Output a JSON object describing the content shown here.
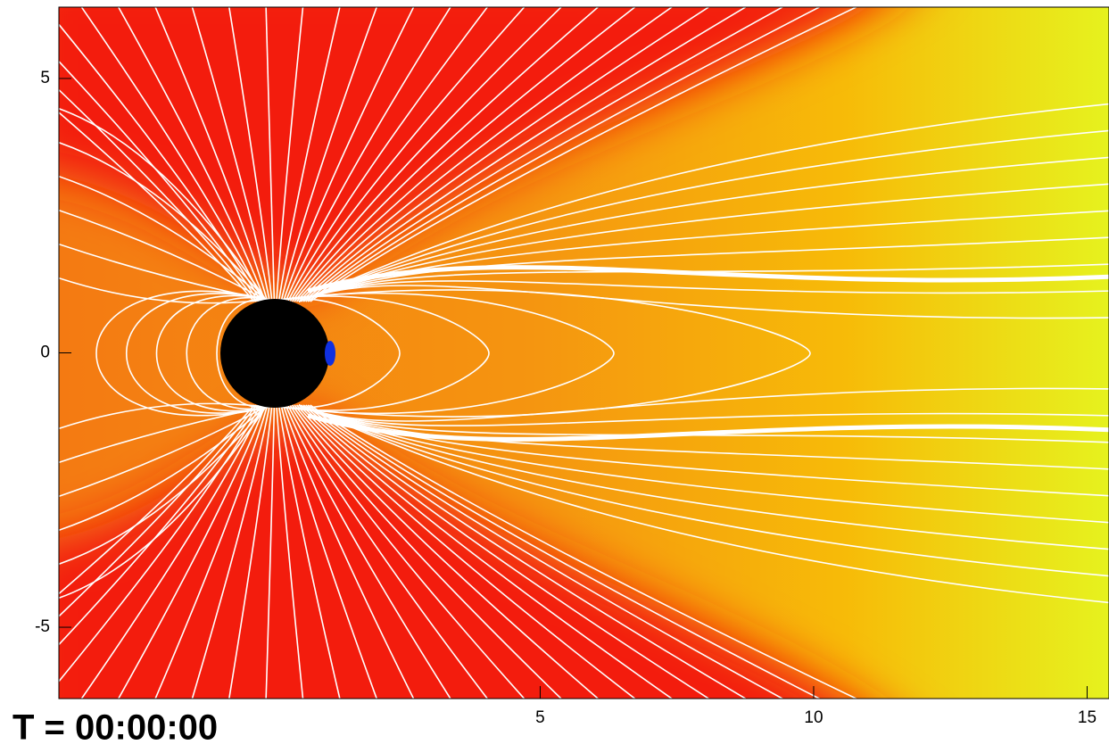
{
  "chart_data": {
    "type": "field",
    "annotation": "T = 00:00:00",
    "xlim": [
      -3.8,
      15.4
    ],
    "ylim": [
      -6.3,
      6.3
    ],
    "xticks": [
      5,
      10,
      15
    ],
    "yticks": [
      5,
      0,
      -5
    ]
  }
}
